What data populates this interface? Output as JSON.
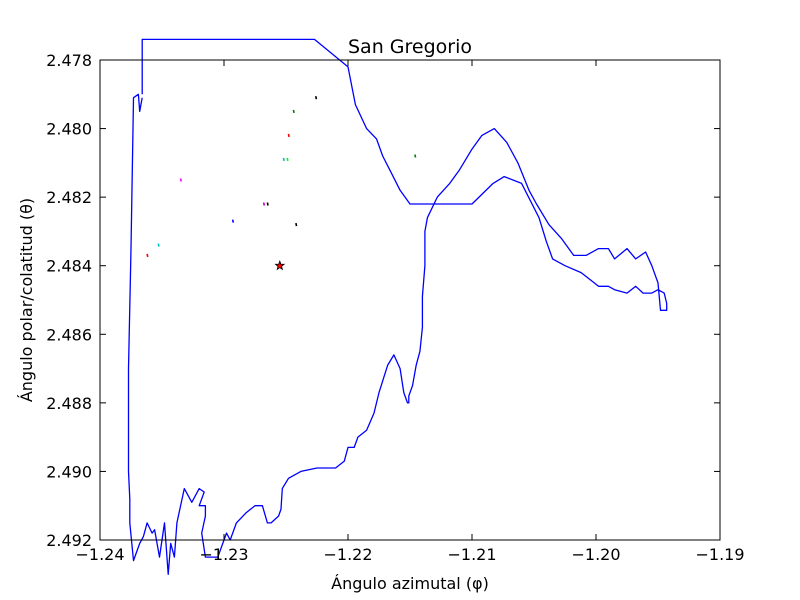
{
  "chart_data": {
    "type": "line",
    "title": "San Gregorio",
    "xlabel": "Ángulo azimutal (φ)",
    "ylabel": "Ángulo polar/colatitud (θ)",
    "xlim": [
      -1.24,
      -1.19
    ],
    "ylim": [
      2.478,
      2.492
    ],
    "y_inverted": true,
    "grid": false,
    "x_ticks": [
      -1.24,
      -1.23,
      -1.22,
      -1.21,
      -1.2,
      -1.19
    ],
    "x_tick_labels": [
      "−1.24",
      "−1.23",
      "−1.22",
      "−1.21",
      "−1.20",
      "−1.19"
    ],
    "y_ticks": [
      2.478,
      2.48,
      2.482,
      2.484,
      2.486,
      2.488,
      2.49,
      2.492
    ],
    "y_tick_labels": [
      "2.478",
      "2.480",
      "2.482",
      "2.484",
      "2.486",
      "2.488",
      "2.490",
      "2.492"
    ],
    "series": [
      {
        "kind": "boundary",
        "color": "#0000ff",
        "x": [
          -1.2366,
          -1.2366,
          -1.2366,
          -1.2227,
          -1.22,
          -1.2194,
          -1.2185,
          -1.2177,
          -1.2172,
          -1.2165,
          -1.2158,
          -1.215,
          -1.2143,
          -1.2128,
          -1.21,
          -1.2083,
          -1.2074,
          -1.206,
          -1.2046,
          -1.204,
          -1.2035,
          -1.2025,
          -1.2012,
          -1.2005,
          -1.1998,
          -1.199,
          -1.1985,
          -1.1975,
          -1.1968,
          -1.1962,
          -1.1955,
          -1.195,
          -1.1945,
          -1.1943,
          -1.1943,
          -1.1948,
          -1.195,
          -1.1955,
          -1.196,
          -1.1968,
          -1.1975,
          -1.1985,
          -1.199,
          -1.1998,
          -1.2008,
          -1.2018,
          -1.2028,
          -1.2038,
          -1.2048,
          -1.2054,
          -1.2063,
          -1.2072,
          -1.2082,
          -1.2092,
          -1.21,
          -1.211,
          -1.2118,
          -1.2128,
          -1.2136,
          -1.2138,
          -1.2138,
          -1.214,
          -1.214,
          -1.2142,
          -1.2145,
          -1.2148,
          -1.2151,
          -1.2151,
          -1.2152,
          -1.2155,
          -1.2158,
          -1.2163,
          -1.2168,
          -1.2175,
          -1.2179,
          -1.2185,
          -1.2192,
          -1.2195,
          -1.22,
          -1.2203,
          -1.221,
          -1.2215,
          -1.2225,
          -1.2238,
          -1.2248,
          -1.2253,
          -1.2254,
          -1.2256,
          -1.2262,
          -1.2265,
          -1.2269,
          -1.2275,
          -1.2282,
          -1.229,
          -1.2295,
          -1.2298,
          -1.2305,
          -1.2315,
          -1.2318,
          -1.2315,
          -1.2315,
          -1.232,
          -1.2316,
          -1.232,
          -1.2326,
          -1.2332,
          -1.2335,
          -1.2338,
          -1.234,
          -1.2343,
          -1.2345,
          -1.2348,
          -1.2352,
          -1.2356,
          -1.2358,
          -1.2362,
          -1.2365,
          -1.2368,
          -1.2373,
          -1.2376,
          -1.2376,
          -1.2377,
          -1.2377,
          -1.2375,
          -1.2373,
          -1.2369,
          -1.2368,
          -1.2368,
          -1.2366
        ],
        "y": [
          2.479,
          2.4784,
          2.4774,
          2.4774,
          2.4782,
          2.4793,
          2.48,
          2.4803,
          2.4808,
          2.4813,
          2.4818,
          2.4822,
          2.4822,
          2.4822,
          2.4822,
          2.4816,
          2.4814,
          2.4816,
          2.4826,
          2.4833,
          2.4838,
          2.484,
          2.4842,
          2.4844,
          2.4846,
          2.4846,
          2.4847,
          2.4848,
          2.4846,
          2.4848,
          2.4848,
          2.4847,
          2.4848,
          2.4851,
          2.4853,
          2.4853,
          2.4845,
          2.484,
          2.4836,
          2.4838,
          2.4835,
          2.4838,
          2.4835,
          2.4835,
          2.4837,
          2.4837,
          2.4832,
          2.4828,
          2.4822,
          2.4818,
          2.481,
          2.4804,
          2.48,
          2.4802,
          2.4806,
          2.4812,
          2.4816,
          2.482,
          2.4826,
          2.483,
          2.484,
          2.4849,
          2.4858,
          2.4865,
          2.4869,
          2.4875,
          2.4878,
          2.488,
          2.488,
          2.4877,
          2.487,
          2.4866,
          2.4869,
          2.4877,
          2.4883,
          2.4888,
          2.489,
          2.4893,
          2.4893,
          2.4897,
          2.4899,
          2.4899,
          2.4899,
          2.49,
          2.4902,
          2.4905,
          2.4911,
          2.4913,
          2.4915,
          2.4915,
          2.491,
          2.491,
          2.4912,
          2.4915,
          2.492,
          2.4918,
          2.4925,
          2.4925,
          2.4918,
          2.4913,
          2.491,
          2.491,
          2.4906,
          2.4905,
          2.4909,
          2.4905,
          2.491,
          2.4915,
          2.4925,
          2.4921,
          2.493,
          2.4915,
          2.4925,
          2.4917,
          2.4918,
          2.4915,
          2.4919,
          2.4921,
          2.4926,
          2.4915,
          2.4908,
          2.49,
          2.487,
          2.4835,
          2.4791,
          2.479,
          2.4795,
          2.4795,
          2.4791
        ]
      }
    ],
    "markers": [
      {
        "kind": "tick",
        "x": -1.2226,
        "y": 2.4791,
        "color": "#000000"
      },
      {
        "kind": "tick",
        "x": -1.2244,
        "y": 2.4795,
        "color": "#008000"
      },
      {
        "kind": "tick",
        "x": -1.2248,
        "y": 2.4802,
        "color": "#ff0000"
      },
      {
        "kind": "tick",
        "x": -1.2249,
        "y": 2.4809,
        "color": "#00ff00"
      },
      {
        "kind": "tick",
        "x": -1.2252,
        "y": 2.4809,
        "color": "#00bfbf"
      },
      {
        "kind": "tick",
        "x": -1.2146,
        "y": 2.4808,
        "color": "#008000"
      },
      {
        "kind": "tick",
        "x": -1.2335,
        "y": 2.4815,
        "color": "#ff00ff"
      },
      {
        "kind": "tick",
        "x": -1.2265,
        "y": 2.4822,
        "color": "#000000"
      },
      {
        "kind": "tick",
        "x": -1.2268,
        "y": 2.4822,
        "color": "#bf00bf"
      },
      {
        "kind": "tick",
        "x": -1.2293,
        "y": 2.4827,
        "color": "#0000ff"
      },
      {
        "kind": "tick",
        "x": -1.2242,
        "y": 2.4828,
        "color": "#000000"
      },
      {
        "kind": "tick",
        "x": -1.2353,
        "y": 2.4834,
        "color": "#00bfbf"
      },
      {
        "kind": "tick",
        "x": -1.2362,
        "y": 2.4837,
        "color": "#ff0000"
      },
      {
        "kind": "star",
        "x": -1.2255,
        "y": 2.484,
        "color": "#ff0000"
      }
    ]
  }
}
